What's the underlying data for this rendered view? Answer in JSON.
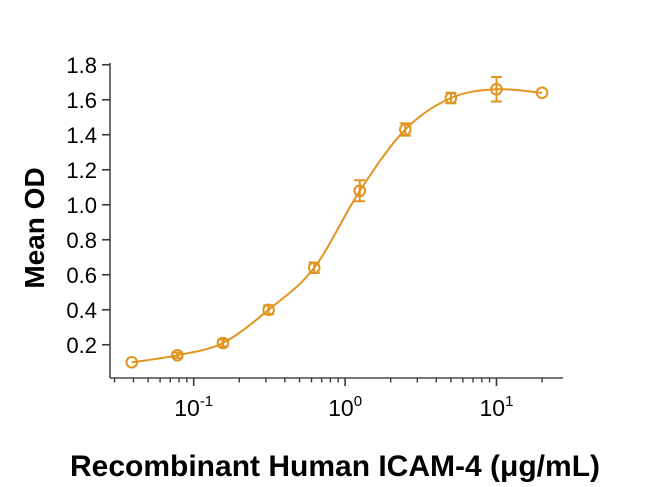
{
  "figure": {
    "x_axis_title": "Recombinant Human ICAM-4 (μg/mL)",
    "y_axis_title": "Mean OD"
  },
  "colors": {
    "series": "#E2941F",
    "axis": "#4A4A4A",
    "tick": "#3A3A3A",
    "text": "#000000",
    "background": "#FFFFFF"
  },
  "chart_data": {
    "type": "scatter",
    "subtype": "dose-response-curve-with-error-bars",
    "title": "",
    "xlabel": "Recombinant Human ICAM-4 (μg/mL)",
    "ylabel": "Mean OD",
    "x_scale": "log10",
    "grid": false,
    "legend": null,
    "xlim": [
      0.028,
      27.5
    ],
    "ylim": [
      0.01,
      1.81
    ],
    "series": [
      {
        "name": "Mean OD",
        "marker": "open-circle",
        "line": "smooth-sigmoid-fit",
        "x": [
          0.039,
          0.078,
          0.156,
          0.3125,
          0.625,
          1.25,
          2.5,
          5,
          10,
          20
        ],
        "y": [
          0.1,
          0.14,
          0.21,
          0.4,
          0.64,
          1.08,
          1.43,
          1.61,
          1.66,
          1.64
        ],
        "yerr": [
          0,
          0.015,
          0.02,
          0.025,
          0.03,
          0.06,
          0.035,
          0.03,
          0.07,
          0
        ]
      }
    ],
    "y_ticks": [
      0.2,
      0.4,
      0.6,
      0.8,
      1.0,
      1.2,
      1.4,
      1.6,
      1.8
    ],
    "y_tick_labels": [
      "0.2",
      "0.4",
      "0.6",
      "0.8",
      "1.0",
      "1.2",
      "1.4",
      "1.6",
      "1.8"
    ],
    "x_major_ticks": [
      0.1,
      1,
      10
    ],
    "x_major_tick_labels": [
      {
        "base": "10",
        "exp": "-1"
      },
      {
        "base": "10",
        "exp": "0"
      },
      {
        "base": "10",
        "exp": "1"
      }
    ],
    "x_minor_ticks": [
      0.03,
      0.04,
      0.05,
      0.06,
      0.07,
      0.08,
      0.09,
      0.2,
      0.3,
      0.4,
      0.5,
      0.6,
      0.7,
      0.8,
      0.9,
      2,
      3,
      4,
      5,
      6,
      7,
      8,
      9,
      20
    ]
  }
}
